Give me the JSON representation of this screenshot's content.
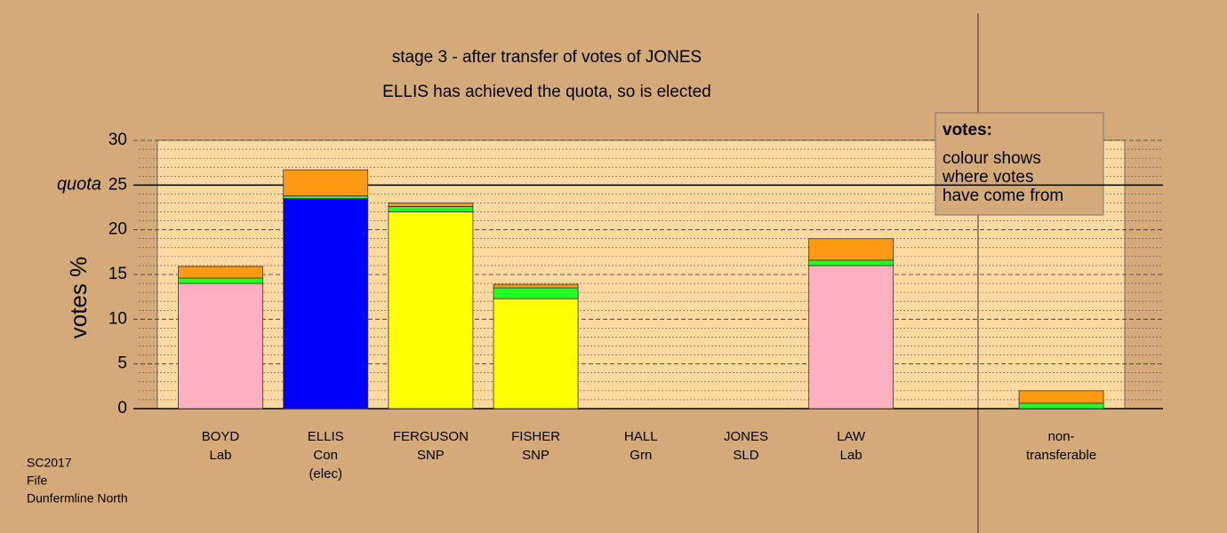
{
  "chart_data": {
    "type": "bar",
    "stacked": true,
    "title": "stage 3 - after transfer of votes of JONES",
    "subtitle": "ELLIS has achieved the quota, so is elected",
    "y_label": "votes %",
    "categories": [
      [
        "BOYD",
        "Lab"
      ],
      [
        "ELLIS",
        "Con",
        "(elec)"
      ],
      [
        "FERGUSON",
        "SNP"
      ],
      [
        "FISHER",
        "SNP"
      ],
      [
        "HALL",
        "Grn"
      ],
      [
        "JONES",
        "SLD"
      ],
      [
        "LAW",
        "Lab"
      ],
      null,
      [
        "non-",
        "transferable"
      ]
    ],
    "series": [
      {
        "color": "#ffb0c0",
        "values": [
          14.0,
          null,
          null,
          null,
          null,
          null,
          16.0,
          null,
          null
        ]
      },
      {
        "color": "#0000ff",
        "values": [
          null,
          23.5,
          null,
          null,
          null,
          null,
          null,
          null,
          null
        ]
      },
      {
        "color": "#ffff00",
        "values": [
          null,
          null,
          22.0,
          12.3,
          null,
          null,
          null,
          null,
          null
        ]
      },
      {
        "color": "#22ff22",
        "values": [
          0.6,
          0.3,
          0.6,
          1.2,
          null,
          null,
          0.6,
          null,
          0.6
        ]
      },
      {
        "color": "#ff9a10",
        "values": [
          1.3,
          2.9,
          0.4,
          0.4,
          null,
          null,
          2.4,
          null,
          1.4
        ]
      }
    ],
    "ylim": [
      0,
      30
    ],
    "yticks": [
      0,
      5,
      10,
      15,
      20,
      25,
      30
    ],
    "grid": true,
    "quota": {
      "value": 25,
      "label": "quota"
    },
    "legend_note": {
      "title": "votes:",
      "lines": [
        "colour shows",
        "where votes",
        "have come from"
      ]
    },
    "footer": [
      "SC2017",
      "Fife",
      "Dunfermline North"
    ]
  }
}
